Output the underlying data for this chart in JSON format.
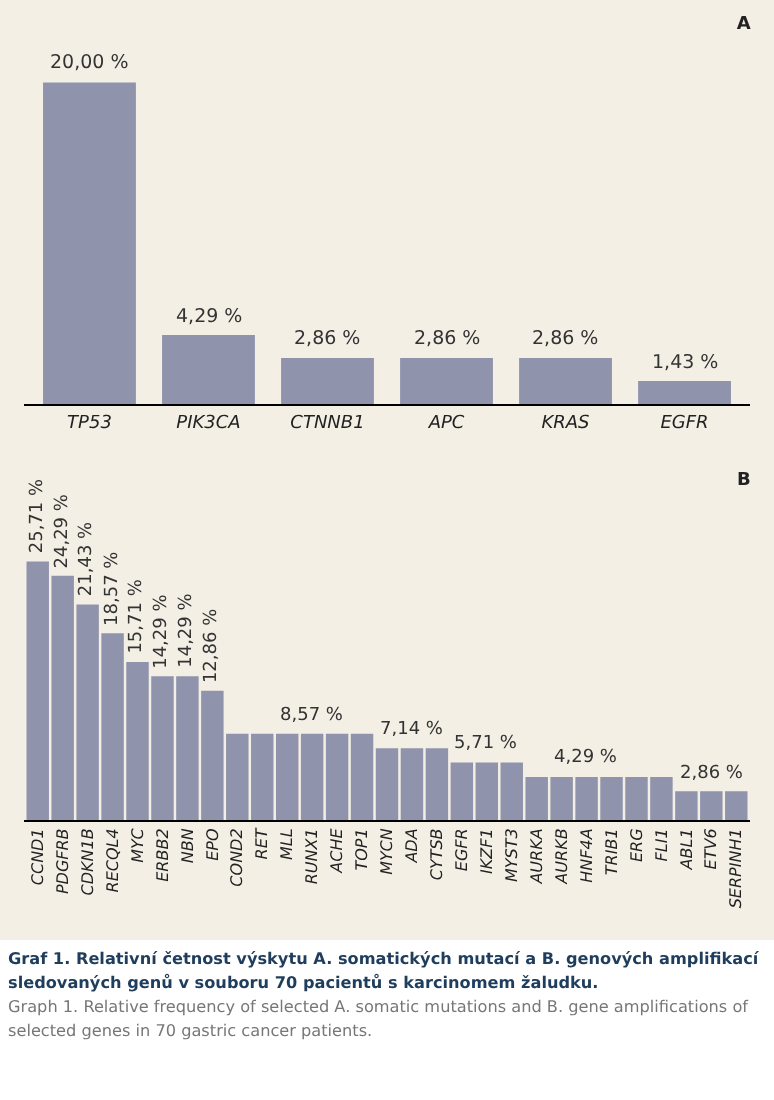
{
  "chart_data": [
    {
      "type": "bar",
      "title": "A",
      "categories": [
        "TP53",
        "PIK3CA",
        "CTNNB1",
        "APC",
        "KRAS",
        "EGFR"
      ],
      "values": [
        20.0,
        4.29,
        2.86,
        2.86,
        2.86,
        1.43
      ],
      "value_labels": [
        "20,00 %",
        "4,29 %",
        "2,86 %",
        "2,86 %",
        "2,86 %",
        "1,43 %"
      ],
      "color": "#8f93ab",
      "tick_labels": "x",
      "grid": false,
      "legend": false
    },
    {
      "type": "bar",
      "title": "B",
      "categories": [
        "CCND1",
        "PDGFRB",
        "CDKN1B",
        "RECQL4",
        "MYC",
        "ERBB2",
        "NBN",
        "EPO",
        "COND2",
        "RET",
        "MLL",
        "RUNX1",
        "ACHE",
        "TOP1",
        "MYCN",
        "ADA",
        "CYTSB",
        "EGFR",
        "IKZF1",
        "MYST3",
        "AURKA",
        "AURKB",
        "HNF4A",
        "TRIB1",
        "ERG",
        "FLI1",
        "ABL1",
        "ETV6",
        "SERPINH1"
      ],
      "values": [
        25.71,
        24.29,
        21.43,
        18.57,
        15.71,
        14.29,
        14.29,
        12.86,
        8.57,
        8.57,
        8.57,
        8.57,
        8.57,
        8.57,
        7.14,
        7.14,
        7.14,
        5.71,
        5.71,
        5.71,
        4.29,
        4.29,
        4.29,
        4.29,
        4.29,
        4.29,
        2.86,
        2.86,
        2.86
      ],
      "value_labels": [
        "25,71 %",
        "24,29 %",
        "21,43 %",
        "18,57 %",
        "15,71 %",
        "14,29 %",
        "14,29 %",
        "12,86 %",
        null,
        null,
        null,
        "8,57 %",
        null,
        null,
        null,
        "7,14 %",
        null,
        null,
        "5,71 %",
        null,
        null,
        null,
        "4,29 %",
        null,
        null,
        null,
        null,
        "2,86 %",
        null
      ],
      "color": "#8f93ab",
      "tick_labels": "x",
      "grid": false,
      "legend": false,
      "annotations": [
        "Graf 1. Relativní četnost výskytu A. somatických mutací a B. genových amplifikací sledovaných genů v souboru 70 pacientů s karcinomem žaludku.",
        "Graph 1. Relative frequency of selected A. somatic mutations and B. gene amplifications of selected genes in 70 gastric cancer patients."
      ]
    }
  ]
}
